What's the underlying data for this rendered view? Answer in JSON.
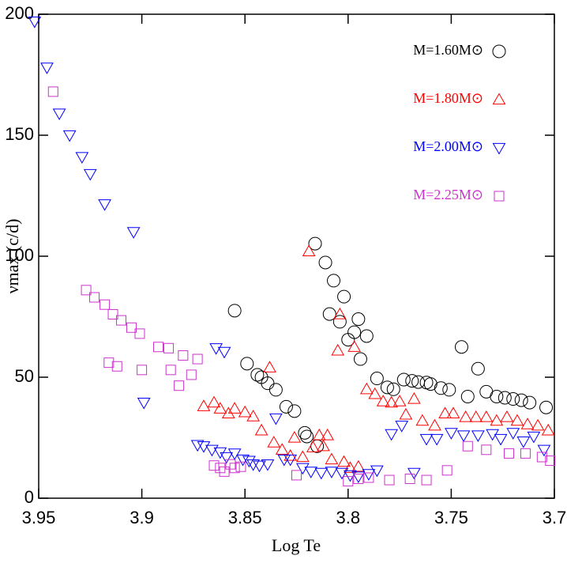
{
  "chart_data": {
    "type": "scatter",
    "x_label": "Log Te",
    "y_label": "νmax (c/d)",
    "xlim": [
      3.95,
      3.7
    ],
    "ylim": [
      0,
      200
    ],
    "xticks": [
      3.95,
      3.9,
      3.85,
      3.8,
      3.75,
      3.7
    ],
    "yticks": [
      0,
      50,
      100,
      150,
      200
    ],
    "legend": "upper right",
    "series": [
      {
        "name": "M=1.60M⊙",
        "color": "#000000",
        "marker": "circle",
        "x": [
          3.855,
          3.849,
          3.844,
          3.842,
          3.839,
          3.835,
          3.83,
          3.826,
          3.821,
          3.82,
          3.815,
          3.816,
          3.811,
          3.807,
          3.802,
          3.809,
          3.804,
          3.8,
          3.797,
          3.795,
          3.794,
          3.791,
          3.786,
          3.781,
          3.778,
          3.773,
          3.769,
          3.766,
          3.762,
          3.76,
          3.755,
          3.751,
          3.745,
          3.742,
          3.737,
          3.733,
          3.728,
          3.724,
          3.72,
          3.716,
          3.712,
          3.704
        ],
        "values": [
          77.5,
          55.6,
          51,
          50,
          47.5,
          44.8,
          37.8,
          36,
          27,
          25.5,
          21.5,
          105.2,
          97.4,
          89.9,
          83.3,
          76.1,
          72.9,
          65.5,
          68.6,
          74,
          57.5,
          67,
          49.5,
          45.8,
          45,
          49,
          48.5,
          48,
          47.8,
          47.2,
          45.5,
          44.8,
          62.5,
          42,
          53.5,
          44,
          42,
          41.5,
          41,
          40.5,
          39.5,
          37.5
        ]
      },
      {
        "name": "M=1.80M⊙",
        "color": "#ff0000",
        "marker": "triangle-up",
        "x": [
          3.87,
          3.865,
          3.862,
          3.858,
          3.855,
          3.85,
          3.846,
          3.842,
          3.838,
          3.836,
          3.832,
          3.828,
          3.826,
          3.822,
          3.819,
          3.817,
          3.814,
          3.812,
          3.81,
          3.808,
          3.805,
          3.804,
          3.802,
          3.799,
          3.797,
          3.795,
          3.791,
          3.787,
          3.783,
          3.779,
          3.775,
          3.772,
          3.768,
          3.764,
          3.758,
          3.753,
          3.749,
          3.743,
          3.738,
          3.733,
          3.728,
          3.723,
          3.718,
          3.713,
          3.708,
          3.703
        ],
        "values": [
          38,
          39.5,
          37,
          35,
          37,
          35.5,
          33.8,
          28,
          54,
          23,
          20,
          17.5,
          25,
          17,
          102,
          21,
          26,
          21.5,
          26,
          16,
          61,
          76,
          15,
          12.5,
          62.5,
          13,
          45,
          43,
          40,
          39.5,
          40,
          34.5,
          41,
          32,
          30,
          35,
          35,
          33.5,
          33.5,
          33.5,
          32,
          33.5,
          32,
          30.5,
          30,
          28
        ]
      },
      {
        "name": "M=2.00M⊙",
        "color": "#0000ff",
        "marker": "triangle-down",
        "x": [
          3.952,
          3.946,
          3.94,
          3.935,
          3.929,
          3.925,
          3.918,
          3.904,
          3.899,
          3.873,
          3.87,
          3.866,
          3.864,
          3.86,
          3.862,
          3.859,
          3.855,
          3.851,
          3.848,
          3.846,
          3.843,
          3.839,
          3.835,
          3.831,
          3.828,
          3.822,
          3.818,
          3.813,
          3.808,
          3.803,
          3.799,
          3.795,
          3.79,
          3.786,
          3.779,
          3.774,
          3.768,
          3.762,
          3.757,
          3.75,
          3.744,
          3.737,
          3.73,
          3.726,
          3.72,
          3.715,
          3.71,
          3.705
        ],
        "values": [
          197,
          178,
          159,
          150,
          141,
          134,
          121.5,
          110,
          39.5,
          22,
          21.5,
          20,
          62,
          60.5,
          19,
          17,
          18.5,
          16,
          15.5,
          14,
          13.5,
          14,
          33,
          16,
          16,
          12.5,
          11,
          10.5,
          11,
          10.5,
          9.5,
          9,
          10,
          11.5,
          26.5,
          30,
          10.5,
          24.5,
          24.5,
          27,
          26,
          26,
          26.5,
          24.5,
          27,
          23.5,
          25.5,
          20
        ]
      },
      {
        "name": "M=2.25M⊙",
        "color": "#cc33cc",
        "marker": "square",
        "x": [
          3.943,
          3.927,
          3.923,
          3.918,
          3.914,
          3.91,
          3.905,
          3.901,
          3.892,
          3.887,
          3.88,
          3.886,
          3.882,
          3.876,
          3.873,
          3.865,
          3.862,
          3.86,
          3.857,
          3.855,
          3.852,
          3.9,
          3.916,
          3.912,
          3.825,
          3.8,
          3.795,
          3.79,
          3.78,
          3.77,
          3.762,
          3.752,
          3.742,
          3.733,
          3.722,
          3.714,
          3.706,
          3.702
        ],
        "values": [
          168,
          86,
          83,
          80,
          76,
          73.5,
          70.5,
          68,
          62.5,
          62,
          59,
          53,
          46.5,
          51,
          57.5,
          13.5,
          12.5,
          11,
          14,
          12.5,
          13,
          53,
          56,
          54.5,
          9.5,
          7,
          8,
          8.5,
          7.5,
          8,
          7.5,
          11.5,
          21.5,
          20,
          18.5,
          18.5,
          17,
          15.5
        ]
      }
    ]
  }
}
